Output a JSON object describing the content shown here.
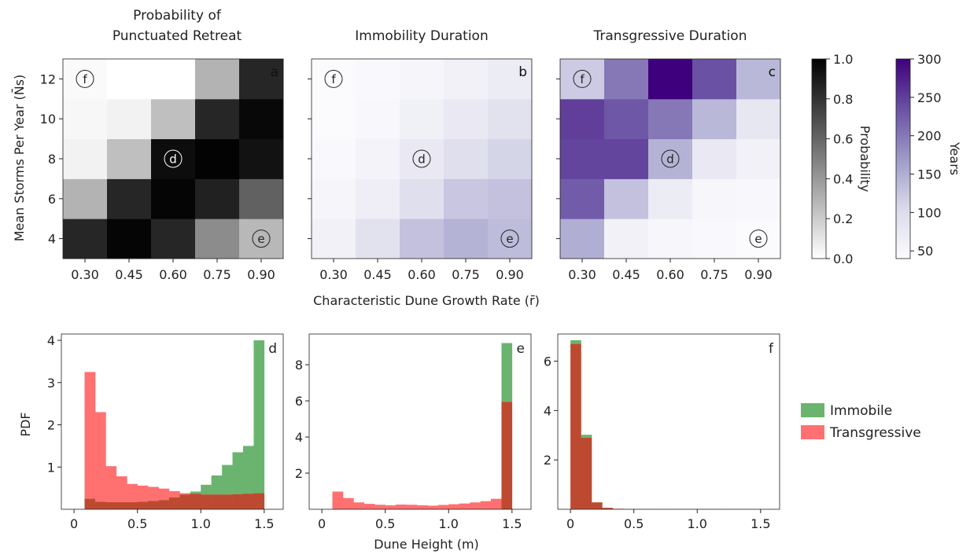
{
  "figure": {
    "shared_xlabel_top": "Characteristic Dune Growth Rate (r̄)",
    "shared_ylabel_top": "Mean Storms Per Year (N̄s)",
    "shared_xlabel_bottom": "Dune Height (m)",
    "shared_ylabel_bottom": "PDF"
  },
  "colors": {
    "gray_cmap": [
      "#ffffff",
      "#000000"
    ],
    "purple_cmap": [
      "#fcfbfd",
      "#dadaeb",
      "#9e9ac8",
      "#6a51a3",
      "#3f007d"
    ],
    "immobile": "#6ab46f",
    "transgressive": "#ff7070",
    "overlap": "#bd4a30"
  },
  "chart_data": [
    {
      "id": "a",
      "type": "heatmap",
      "title": "Probability of Punctuated Retreat",
      "panel_label": "a",
      "xticks": [
        "0.30",
        "0.45",
        "0.60",
        "0.75",
        "0.90"
      ],
      "yticks": [
        "4",
        "6",
        "8",
        "10",
        "12"
      ],
      "colormap": "gray",
      "vmin": 0,
      "vmax": 1,
      "values": [
        [
          0.85,
          0.98,
          0.85,
          0.45,
          0.28
        ],
        [
          0.3,
          0.85,
          0.98,
          0.87,
          0.62
        ],
        [
          0.05,
          0.25,
          0.95,
          0.99,
          0.93
        ],
        [
          0.03,
          0.05,
          0.25,
          0.85,
          0.97
        ],
        [
          0.02,
          0.0,
          0.0,
          0.3,
          0.85
        ]
      ],
      "markers": [
        {
          "label": "f",
          "col": 0,
          "row": 4
        },
        {
          "label": "d",
          "col": 2,
          "row": 2
        },
        {
          "label": "e",
          "col": 4,
          "row": 0
        }
      ]
    },
    {
      "id": "b",
      "type": "heatmap",
      "title": "Immobility Duration",
      "panel_label": "b",
      "xticks": [
        "0.30",
        "0.45",
        "0.60",
        "0.75",
        "0.90"
      ],
      "yticks": [
        "4",
        "6",
        "8",
        "10",
        "12"
      ],
      "colormap": "purples",
      "vmin": 40,
      "vmax": 300,
      "values": [
        [
          60,
          90,
          130,
          145,
          135
        ],
        [
          52,
          65,
          95,
          125,
          130
        ],
        [
          45,
          55,
          75,
          95,
          110
        ],
        [
          42,
          47,
          62,
          75,
          90
        ],
        [
          42,
          45,
          52,
          60,
          70
        ]
      ],
      "markers": [
        {
          "label": "f",
          "col": 0,
          "row": 4
        },
        {
          "label": "d",
          "col": 2,
          "row": 2
        },
        {
          "label": "e",
          "col": 4,
          "row": 0
        }
      ]
    },
    {
      "id": "c",
      "type": "heatmap",
      "title": "Transgressive Duration",
      "panel_label": "c",
      "xticks": [
        "0.30",
        "0.45",
        "0.60",
        "0.75",
        "0.90"
      ],
      "yticks": [
        "4",
        "6",
        "8",
        "10",
        "12"
      ],
      "colormap": "purples",
      "vmin": 40,
      "vmax": 300,
      "colorbar_label": "Years",
      "values": [
        [
          150,
          60,
          50,
          45,
          42
        ],
        [
          225,
          130,
          70,
          50,
          47
        ],
        [
          245,
          245,
          145,
          75,
          60
        ],
        [
          250,
          230,
          200,
          140,
          80
        ],
        [
          120,
          200,
          300,
          235,
          140
        ]
      ],
      "markers": [
        {
          "label": "f",
          "col": 0,
          "row": 4
        },
        {
          "label": "d",
          "col": 2,
          "row": 2
        },
        {
          "label": "e",
          "col": 4,
          "row": 0
        }
      ]
    },
    {
      "id": "d",
      "type": "histogram",
      "panel_label": "d",
      "bin_edges": [
        0.0,
        0.083,
        0.167,
        0.25,
        0.333,
        0.417,
        0.5,
        0.583,
        0.667,
        0.75,
        0.833,
        0.917,
        1.0,
        1.083,
        1.167,
        1.25,
        1.333,
        1.417,
        1.5
      ],
      "xticks": [
        0,
        0.5,
        1.0,
        1.5
      ],
      "xtick_labels": [
        "0",
        "0.5",
        "1.0",
        "1.5"
      ],
      "yticks": [
        1,
        2,
        3,
        4
      ],
      "xlim": [
        -0.1,
        1.65
      ],
      "ylim": [
        0,
        4.15
      ],
      "series": [
        {
          "name": "Immobile",
          "values": [
            0,
            0.25,
            0.18,
            0.17,
            0.17,
            0.17,
            0.18,
            0.2,
            0.22,
            0.28,
            0.35,
            0.42,
            0.58,
            0.8,
            1.05,
            1.35,
            1.5,
            4.0
          ]
        },
        {
          "name": "Transgressive",
          "values": [
            0,
            3.25,
            2.3,
            1.02,
            0.78,
            0.6,
            0.56,
            0.53,
            0.49,
            0.43,
            0.38,
            0.37,
            0.35,
            0.35,
            0.35,
            0.36,
            0.37,
            0.38
          ]
        }
      ]
    },
    {
      "id": "e",
      "type": "histogram",
      "panel_label": "e",
      "bin_edges": [
        0.0,
        0.083,
        0.167,
        0.25,
        0.333,
        0.417,
        0.5,
        0.583,
        0.667,
        0.75,
        0.833,
        0.917,
        1.0,
        1.083,
        1.167,
        1.25,
        1.333,
        1.417,
        1.5
      ],
      "xticks": [
        0,
        0.5,
        1.0,
        1.5
      ],
      "xtick_labels": [
        "0",
        "0.5",
        "1.0",
        "1.5"
      ],
      "yticks": [
        2,
        4,
        6,
        8
      ],
      "xlim": [
        -0.1,
        1.65
      ],
      "ylim": [
        0,
        9.7
      ],
      "series": [
        {
          "name": "Immobile",
          "values": [
            0,
            0,
            0,
            0,
            0,
            0,
            0,
            0,
            0,
            0,
            0,
            0,
            0,
            0,
            0,
            0,
            0,
            9.2
          ]
        },
        {
          "name": "Transgressive",
          "values": [
            0,
            0.98,
            0.62,
            0.38,
            0.3,
            0.25,
            0.22,
            0.26,
            0.25,
            0.22,
            0.2,
            0.24,
            0.28,
            0.32,
            0.38,
            0.45,
            0.58,
            5.95
          ]
        }
      ]
    },
    {
      "id": "f",
      "type": "histogram",
      "panel_label": "f",
      "bin_edges": [
        0.0,
        0.083,
        0.167,
        0.25,
        0.333,
        0.417,
        0.5,
        0.583,
        0.667,
        0.75,
        0.833,
        0.917,
        1.0,
        1.083,
        1.167,
        1.25,
        1.333,
        1.417,
        1.5
      ],
      "xticks": [
        0,
        0.5,
        1.0,
        1.5
      ],
      "xtick_labels": [
        "0",
        "0.5",
        "1.0",
        "1.5"
      ],
      "yticks": [
        2,
        4,
        6
      ],
      "xlim": [
        -0.1,
        1.65
      ],
      "ylim": [
        0,
        7.1
      ],
      "series": [
        {
          "name": "Immobile",
          "values": [
            6.85,
            3.02,
            0.28,
            0.06,
            0.02,
            0.01,
            0.01,
            0.01,
            0.01,
            0.01,
            0.01,
            0.01,
            0.01,
            0.01,
            0.01,
            0.01,
            0.01,
            0.01
          ]
        },
        {
          "name": "Transgressive",
          "values": [
            6.7,
            2.9,
            0.28,
            0.06,
            0.02,
            0.01,
            0.01,
            0.01,
            0.01,
            0.01,
            0.01,
            0.01,
            0.01,
            0.01,
            0.01,
            0.01,
            0.01,
            0.01
          ]
        }
      ]
    }
  ],
  "colorbars": [
    {
      "id": "probability",
      "label": "Probability",
      "ticks": [
        "0.0",
        "0.2",
        "0.4",
        "0.6",
        "0.8",
        "1.0"
      ],
      "min": 0,
      "max": 1,
      "colormap": "gray"
    },
    {
      "id": "years",
      "label": "Years",
      "ticks": [
        "50",
        "100",
        "150",
        "200",
        "250",
        "300"
      ],
      "min": 40,
      "max": 300,
      "colormap": "purples"
    }
  ],
  "legend": {
    "items": [
      {
        "name": "Immobile"
      },
      {
        "name": "Transgressive"
      }
    ]
  }
}
